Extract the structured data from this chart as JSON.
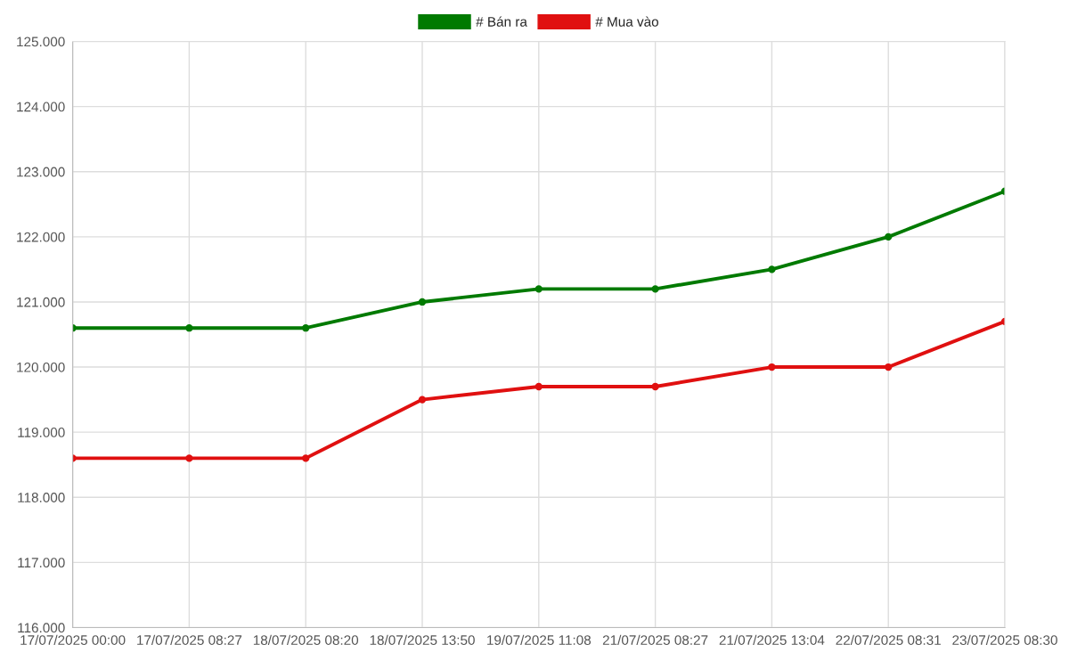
{
  "chart_data": {
    "type": "line",
    "categories": [
      "17/07/2025 00:00",
      "17/07/2025 08:27",
      "18/07/2025 08:20",
      "18/07/2025 13:50",
      "19/07/2025 11:08",
      "21/07/2025 08:27",
      "21/07/2025 13:04",
      "22/07/2025 08:31",
      "23/07/2025 08:30"
    ],
    "series": [
      {
        "name": "# Bán ra",
        "color": "#007a00",
        "values": [
          120600,
          120600,
          120600,
          121000,
          121200,
          121200,
          121500,
          122000,
          122700
        ]
      },
      {
        "name": "# Mua vào",
        "color": "#e01010",
        "values": [
          118600,
          118600,
          118600,
          119500,
          119700,
          119700,
          120000,
          120000,
          120700
        ]
      }
    ],
    "ylim": [
      116000,
      125000
    ],
    "yticks": [
      {
        "value": 116000,
        "label": "116.000"
      },
      {
        "value": 117000,
        "label": "117.000"
      },
      {
        "value": 118000,
        "label": "118.000"
      },
      {
        "value": 119000,
        "label": "119.000"
      },
      {
        "value": 120000,
        "label": "120.000"
      },
      {
        "value": 121000,
        "label": "121.000"
      },
      {
        "value": 122000,
        "label": "122.000"
      },
      {
        "value": 123000,
        "label": "123.000"
      },
      {
        "value": 124000,
        "label": "124.000"
      },
      {
        "value": 125000,
        "label": "125.000"
      }
    ],
    "grid": true,
    "legend": "top",
    "marker": "circle",
    "line_style": "solid"
  }
}
